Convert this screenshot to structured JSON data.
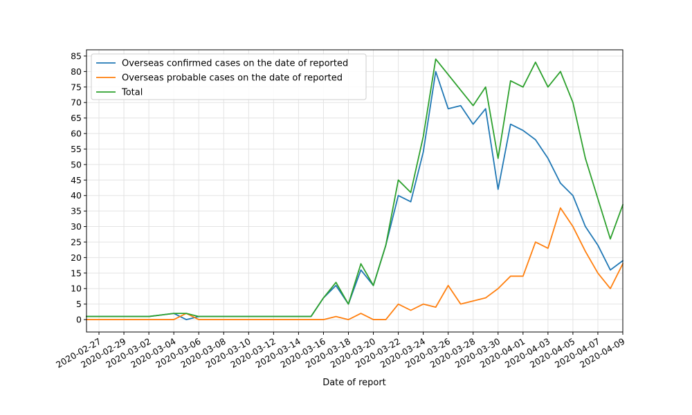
{
  "chart_data": {
    "type": "line",
    "title": "",
    "xlabel": "Date of report",
    "ylabel": "",
    "ylim": [
      -4,
      87
    ],
    "y_ticks": [
      0,
      5,
      10,
      15,
      20,
      25,
      30,
      35,
      40,
      45,
      50,
      55,
      60,
      65,
      70,
      75,
      80,
      85
    ],
    "xlim": [
      "2020-02-26",
      "2020-04-09"
    ],
    "x_tick_labels": [
      "2020-02-27",
      "2020-02-29",
      "2020-03-02",
      "2020-03-04",
      "2020-03-06",
      "2020-03-08",
      "2020-03-10",
      "2020-03-12",
      "2020-03-14",
      "2020-03-16",
      "2020-03-18",
      "2020-03-20",
      "2020-03-22",
      "2020-03-24",
      "2020-03-26",
      "2020-03-28",
      "2020-03-30",
      "2020-04-01",
      "2020-04-03",
      "2020-04-05",
      "2020-04-07",
      "2020-04-09"
    ],
    "x_tick_label_rotation": "rotated about 30 degrees",
    "grid": true,
    "legend_position": "top-left",
    "x": [
      "2020-02-26",
      "2020-03-01",
      "2020-03-02",
      "2020-03-03",
      "2020-03-04",
      "2020-03-05",
      "2020-03-06",
      "2020-03-07",
      "2020-03-15",
      "2020-03-16",
      "2020-03-17",
      "2020-03-18",
      "2020-03-19",
      "2020-03-20",
      "2020-03-21",
      "2020-03-22",
      "2020-03-23",
      "2020-03-24",
      "2020-03-25",
      "2020-03-26",
      "2020-03-27",
      "2020-03-28",
      "2020-03-29",
      "2020-03-30",
      "2020-03-31",
      "2020-04-01",
      "2020-04-02",
      "2020-04-03",
      "2020-04-04",
      "2020-04-05",
      "2020-04-06",
      "2020-04-07",
      "2020-04-08",
      "2020-04-09"
    ],
    "series": [
      {
        "name": "Overseas confirmed cases on the date of reported",
        "color": "#1f77b4",
        "values": [
          1,
          1,
          1,
          1.5,
          2,
          0,
          1,
          1,
          1,
          7,
          11,
          5,
          16,
          11,
          24,
          40,
          38,
          54,
          80,
          68,
          69,
          63,
          68,
          42,
          63,
          61,
          58,
          52,
          44,
          40,
          30,
          24,
          16,
          19
        ]
      },
      {
        "name": "Overseas probable cases on the date of reported",
        "color": "#ff7f0e",
        "values": [
          0,
          0,
          0,
          0,
          0,
          2,
          0,
          0,
          0,
          0,
          1,
          0,
          2,
          0,
          0,
          5,
          3,
          5,
          4,
          11,
          5,
          6,
          7,
          10,
          14,
          14,
          25,
          23,
          36,
          30,
          22,
          15,
          10,
          18
        ]
      },
      {
        "name": "Total",
        "color": "#2ca02c",
        "values": [
          1,
          1,
          1,
          1.5,
          2,
          2,
          1,
          1,
          1,
          7,
          12,
          5,
          18,
          11,
          24,
          45,
          41,
          59,
          84,
          79,
          74,
          69,
          75,
          52,
          77,
          75,
          83,
          75,
          80,
          70,
          52,
          39,
          26,
          37
        ]
      }
    ]
  }
}
